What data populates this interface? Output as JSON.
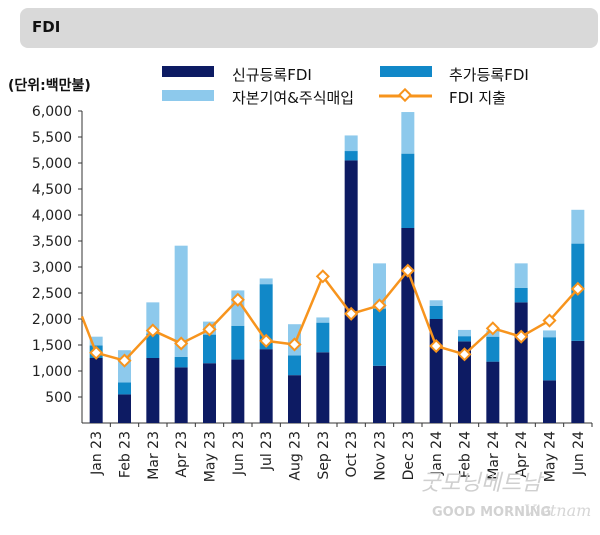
{
  "header": {
    "title": "FDI"
  },
  "watermark": {
    "script": "굿모닝베트남",
    "brand": "GOOD MORNING",
    "brand_script": "Vietnam"
  },
  "colors": {
    "new_reg": "#0d1b63",
    "add_reg": "#1188c8",
    "capital": "#8dc9ec",
    "disbursement": "#f7941d"
  },
  "chart_data": {
    "type": "bar",
    "unit_label": "(단위:백만불)",
    "categories": [
      "Jan 23",
      "Feb 23",
      "Mar 23",
      "Apr 23",
      "May 23",
      "Jun 23",
      "Jul 23",
      "Aug 23",
      "Sep 23",
      "Oct 23",
      "Nov 23",
      "Dec 23",
      "Jan 24",
      "Feb 24",
      "Mar 24",
      "Apr 24",
      "May 24",
      "Jun 24"
    ],
    "ylim": [
      0,
      6000
    ],
    "yticks": [
      500,
      1000,
      1500,
      2000,
      2500,
      3000,
      3500,
      4000,
      4500,
      5000,
      5500,
      6000
    ],
    "ytick_labels": [
      "500",
      "1,000",
      "1,500",
      "2,000",
      "2,500",
      "3,000",
      "3,500",
      "4,000",
      "4,500",
      "5,000",
      "5,500",
      "6,000"
    ],
    "stacked": true,
    "series": [
      {
        "name": "신규등록FDI",
        "kind": "bar",
        "color": "#0d1b63",
        "values": [
          1250,
          550,
          1250,
          1070,
          1150,
          1220,
          1420,
          920,
          1360,
          5050,
          1100,
          3750,
          2000,
          1570,
          1180,
          2320,
          820,
          1580
        ]
      },
      {
        "name": "추가등록FDI",
        "kind": "bar",
        "color": "#1188c8",
        "values": [
          240,
          230,
          470,
          200,
          550,
          650,
          1250,
          380,
          570,
          180,
          1100,
          1430,
          250,
          100,
          480,
          280,
          830,
          1870
        ]
      },
      {
        "name": "자본기여&주식매입",
        "kind": "bar",
        "color": "#8dc9ec",
        "values": [
          170,
          620,
          600,
          2140,
          250,
          680,
          110,
          600,
          100,
          300,
          870,
          800,
          110,
          120,
          120,
          470,
          130,
          650
        ]
      },
      {
        "name": "FDI  지출",
        "kind": "line",
        "color": "#f7941d",
        "values": [
          1350,
          1200,
          1780,
          1530,
          1800,
          2370,
          1580,
          1510,
          2820,
          2100,
          2260,
          2930,
          1480,
          1320,
          1820,
          1660,
          1970,
          2580
        ],
        "start_value": 2050
      }
    ],
    "legend": {
      "placement": "top"
    },
    "grid": false
  }
}
